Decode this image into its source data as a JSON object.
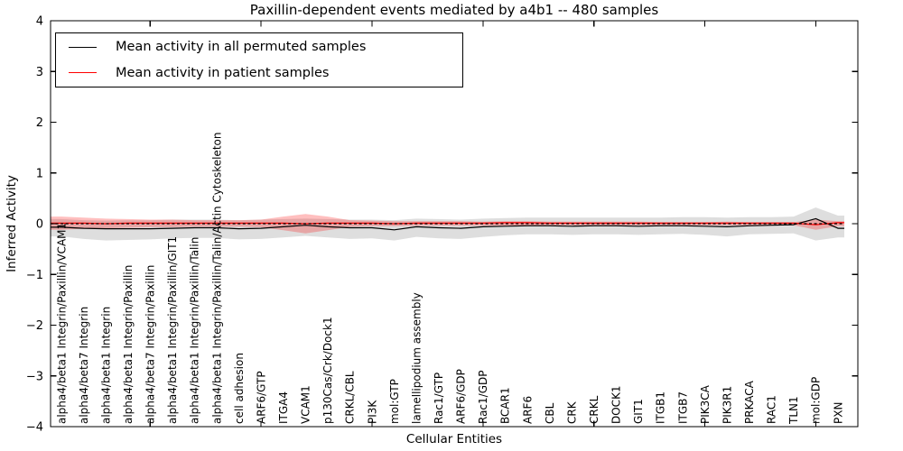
{
  "figure": {
    "background": "#ffffff",
    "axis_color": "#000000"
  },
  "chart_data": {
    "type": "line",
    "title": "Paxillin-dependent events mediated by a4b1 -- 480 samples",
    "xlabel": "Cellular Entities",
    "ylabel": "Inferred Activity",
    "ylim": [
      -4,
      4
    ],
    "yticks": [
      4,
      3,
      2,
      1,
      0,
      -1,
      -2,
      -3,
      -4
    ],
    "x_major_tick_indices": [
      4,
      9,
      14,
      19,
      24,
      29,
      34
    ],
    "grid": false,
    "legend_position": "upper left",
    "zero_line": {
      "show": true,
      "style": "dashed",
      "color": "#000000",
      "value": 0
    },
    "categories": [
      "alpha4/beta1 Integrin/Paxillin/VCAM1",
      "alpha4/beta7 Integrin",
      "alpha4/beta1 Integrin",
      "alpha4/beta1 Integrin/Paxillin",
      "alpha4/beta7 Integrin/Paxillin",
      "alpha4/beta1 Integrin/Paxillin/GIT1",
      "alpha4/beta1 Integrin/Paxillin/Talin",
      "alpha4/beta1 Integrin/Paxillin/Talin/Actin Cytoskeleton",
      "cell adhesion",
      "ARF6/GTP",
      "ITGA4",
      "VCAM1",
      "p130Cas/Crk/Dock1",
      "CRKL/CBL",
      "PI3K",
      "mol:GTP",
      "lamellipodium assembly",
      "Rac1/GTP",
      "ARF6/GDP",
      "Rac1/GDP",
      "BCAR1",
      "ARF6",
      "CBL",
      "CRK",
      "CRKL",
      "DOCK1",
      "GIT1",
      "ITGB1",
      "ITGB7",
      "PIK3CA",
      "PIK3R1",
      "PRKACA",
      "RAC1",
      "TLN1",
      "mol:GDP",
      "PXN"
    ],
    "series": [
      {
        "name": "Mean activity in all permuted samples",
        "color": "#000000",
        "values": [
          -0.07,
          -0.09,
          -0.1,
          -0.1,
          -0.1,
          -0.09,
          -0.08,
          -0.08,
          -0.1,
          -0.09,
          -0.06,
          -0.03,
          -0.06,
          -0.08,
          -0.08,
          -0.12,
          -0.06,
          -0.08,
          -0.09,
          -0.06,
          -0.05,
          -0.04,
          -0.04,
          -0.05,
          -0.04,
          -0.04,
          -0.05,
          -0.04,
          -0.04,
          -0.05,
          -0.06,
          -0.04,
          -0.03,
          -0.02,
          0.1,
          -0.09
        ]
      },
      {
        "name": "Mean activity in patient samples",
        "color": "#ff0000",
        "values": [
          0.01,
          0.01,
          0.0,
          0.01,
          0.01,
          0.01,
          0.01,
          0.01,
          0.01,
          0.01,
          0.01,
          0.0,
          0.01,
          0.01,
          0.01,
          0.0,
          0.01,
          0.01,
          0.01,
          0.01,
          0.02,
          0.02,
          0.01,
          0.01,
          0.01,
          0.01,
          0.01,
          0.01,
          0.01,
          0.01,
          0.01,
          0.01,
          0.01,
          0.01,
          -0.02,
          0.02
        ]
      }
    ],
    "bands": [
      {
        "name": "permuted-samples-band",
        "fill": "#000000",
        "opacity": 0.13,
        "upper": [
          0.09,
          0.07,
          0.06,
          0.07,
          0.07,
          0.08,
          0.08,
          0.08,
          0.07,
          0.08,
          0.09,
          0.1,
          0.09,
          0.08,
          0.08,
          0.07,
          0.1,
          0.09,
          0.08,
          0.1,
          0.11,
          0.12,
          0.12,
          0.12,
          0.12,
          0.12,
          0.12,
          0.12,
          0.13,
          0.13,
          0.12,
          0.13,
          0.13,
          0.14,
          0.32,
          0.16
        ],
        "lower": [
          -0.25,
          -0.3,
          -0.33,
          -0.32,
          -0.31,
          -0.29,
          -0.28,
          -0.28,
          -0.31,
          -0.3,
          -0.27,
          -0.24,
          -0.27,
          -0.3,
          -0.29,
          -0.33,
          -0.26,
          -0.29,
          -0.3,
          -0.26,
          -0.23,
          -0.21,
          -0.21,
          -0.22,
          -0.21,
          -0.21,
          -0.22,
          -0.21,
          -0.2,
          -0.22,
          -0.25,
          -0.21,
          -0.2,
          -0.19,
          -0.33,
          -0.27
        ]
      },
      {
        "name": "patient-samples-band",
        "fill": "#ff0000",
        "opacity": 0.25,
        "upper": [
          0.14,
          0.12,
          0.1,
          0.09,
          0.08,
          0.08,
          0.07,
          0.07,
          0.07,
          0.08,
          0.14,
          0.19,
          0.14,
          0.07,
          0.06,
          0.05,
          0.05,
          0.05,
          0.05,
          0.04,
          0.05,
          0.05,
          0.04,
          0.04,
          0.04,
          0.04,
          0.04,
          0.03,
          0.03,
          0.03,
          0.04,
          0.03,
          0.03,
          0.03,
          0.08,
          0.05
        ],
        "lower": [
          -0.12,
          -0.1,
          -0.09,
          -0.08,
          -0.07,
          -0.07,
          -0.06,
          -0.06,
          -0.06,
          -0.07,
          -0.13,
          -0.19,
          -0.13,
          -0.06,
          -0.05,
          -0.05,
          -0.04,
          -0.04,
          -0.04,
          -0.04,
          -0.04,
          -0.04,
          -0.03,
          -0.03,
          -0.03,
          -0.03,
          -0.03,
          -0.03,
          -0.03,
          -0.03,
          -0.03,
          -0.03,
          -0.03,
          -0.03,
          -0.12,
          -0.05
        ]
      }
    ]
  },
  "legend": {
    "items": [
      {
        "label": "Mean activity in all permuted samples",
        "color": "#000000"
      },
      {
        "label": "Mean activity in patient samples",
        "color": "#ff0000"
      }
    ]
  }
}
